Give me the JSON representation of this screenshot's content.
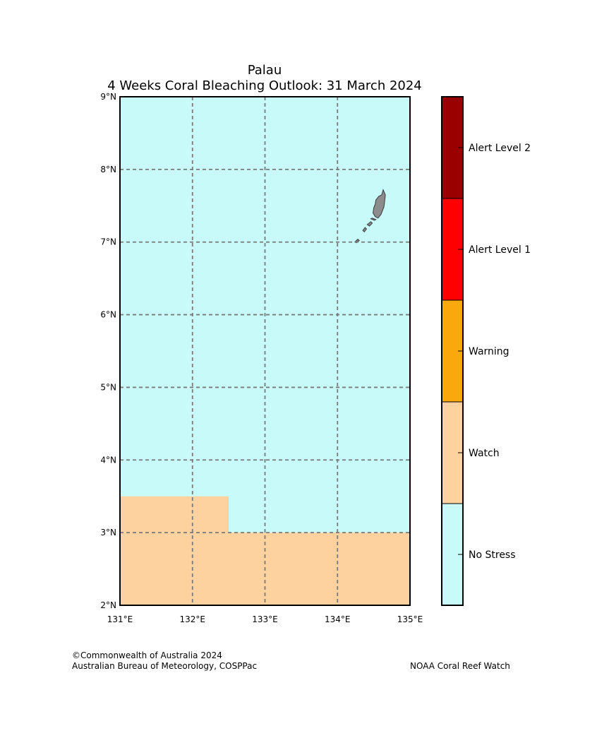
{
  "title": {
    "line1": "Palau",
    "line2": "4 Weeks Coral Bleaching Outlook: 31 March 2024"
  },
  "map": {
    "lon_range": [
      131,
      135
    ],
    "lat_range": [
      2,
      9
    ],
    "lat_ticks": [
      {
        "value": 9,
        "label": "9°N"
      },
      {
        "value": 8,
        "label": "8°N"
      },
      {
        "value": 7,
        "label": "7°N"
      },
      {
        "value": 6,
        "label": "6°N"
      },
      {
        "value": 5,
        "label": "5°N"
      },
      {
        "value": 4,
        "label": "4°N"
      },
      {
        "value": 3,
        "label": "3°N"
      },
      {
        "value": 2,
        "label": "2°N"
      }
    ],
    "lon_ticks": [
      {
        "value": 131,
        "label": "131°E"
      },
      {
        "value": 132,
        "label": "132°E"
      },
      {
        "value": 133,
        "label": "133°E"
      },
      {
        "value": 134,
        "label": "134°E"
      },
      {
        "value": 135,
        "label": "135°E"
      }
    ],
    "background_level": "No Stress",
    "regions": [
      {
        "level": "Watch",
        "lon": [
          131,
          132.5
        ],
        "lat": [
          3,
          3.5
        ]
      },
      {
        "level": "Watch",
        "lon": [
          131,
          135
        ],
        "lat": [
          2,
          3
        ]
      }
    ],
    "land": [
      {
        "name": "babeldaob",
        "points": [
          [
            134.63,
            7.72
          ],
          [
            134.66,
            7.65
          ],
          [
            134.65,
            7.55
          ],
          [
            134.64,
            7.48
          ],
          [
            134.6,
            7.38
          ],
          [
            134.56,
            7.33
          ],
          [
            134.52,
            7.35
          ],
          [
            134.49,
            7.4
          ],
          [
            134.5,
            7.47
          ],
          [
            134.52,
            7.52
          ],
          [
            134.53,
            7.58
          ],
          [
            134.57,
            7.63
          ],
          [
            134.61,
            7.65
          ]
        ]
      },
      {
        "name": "koror-chain",
        "points": [
          [
            134.48,
            7.33
          ],
          [
            134.53,
            7.31
          ],
          [
            134.51,
            7.3
          ],
          [
            134.46,
            7.32
          ]
        ]
      },
      {
        "name": "islet-1",
        "points": [
          [
            134.46,
            7.28
          ],
          [
            134.48,
            7.26
          ],
          [
            134.44,
            7.22
          ],
          [
            134.41,
            7.24
          ]
        ]
      },
      {
        "name": "islet-2",
        "points": [
          [
            134.38,
            7.2
          ],
          [
            134.4,
            7.18
          ],
          [
            134.37,
            7.14
          ],
          [
            134.35,
            7.16
          ]
        ]
      },
      {
        "name": "angaur",
        "points": [
          [
            134.28,
            7.04
          ],
          [
            134.3,
            7.02
          ],
          [
            134.26,
            6.99
          ],
          [
            134.24,
            7.0
          ]
        ]
      }
    ]
  },
  "legend": {
    "levels": [
      {
        "label": "Alert Level 2",
        "color": "#990000"
      },
      {
        "label": "Alert Level 1",
        "color": "#ff0000"
      },
      {
        "label": "Warning",
        "color": "#faa80c"
      },
      {
        "label": "Watch",
        "color": "#fed29f"
      },
      {
        "label": "No Stress",
        "color": "#c8fafa"
      }
    ]
  },
  "credits": {
    "copyright": "©Commonwealth of Australia 2024",
    "agency": "Australian Bureau of Meteorology, COSPPac",
    "partner": "NOAA Coral Reef Watch"
  }
}
